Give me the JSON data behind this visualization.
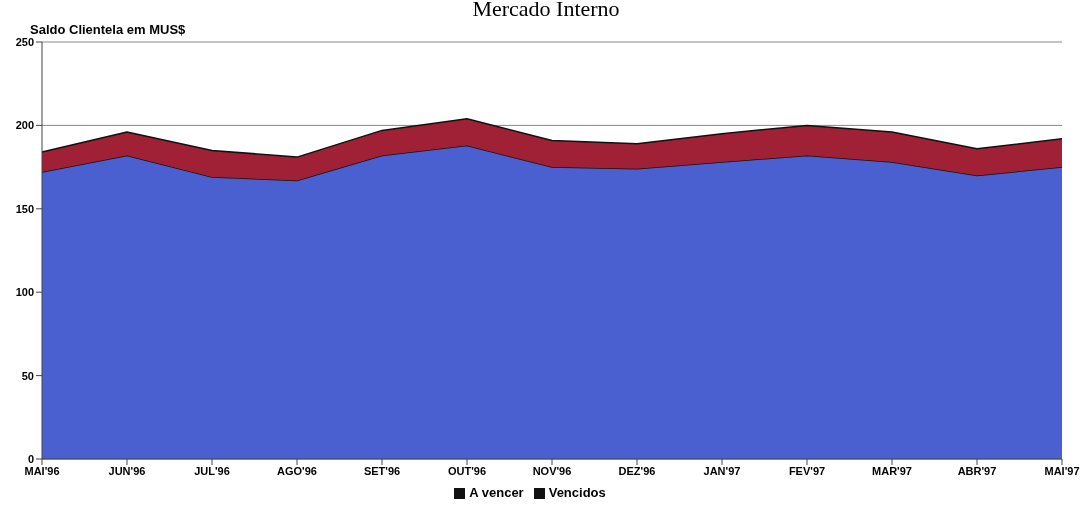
{
  "chart_data": {
    "type": "area",
    "title": "Mercado Interno",
    "ylabel": "Saldo Clientela em MUS$",
    "categories": [
      "MAI'96",
      "JUN'96",
      "JUL'96",
      "AGO'96",
      "SET'96",
      "OUT'96",
      "NOV'96",
      "DEZ'96",
      "JAN'97",
      "FEV'97",
      "MAR'97",
      "ABR'97",
      "MAI'97"
    ],
    "series": [
      {
        "name": "A vencer",
        "color": "#4a5fd0",
        "values": [
          172,
          182,
          169,
          167,
          182,
          188,
          175,
          174,
          178,
          182,
          178,
          170,
          175
        ]
      },
      {
        "name": "Vencidos",
        "color": "#a02035",
        "values": [
          12,
          14,
          16,
          14,
          15,
          16,
          16,
          15,
          17,
          18,
          18,
          16,
          17
        ]
      }
    ],
    "stacked": true,
    "ylim": [
      0,
      250
    ],
    "yticks": [
      0,
      50,
      100,
      150,
      200,
      250
    ],
    "grid": "y",
    "legend": "bottom"
  }
}
